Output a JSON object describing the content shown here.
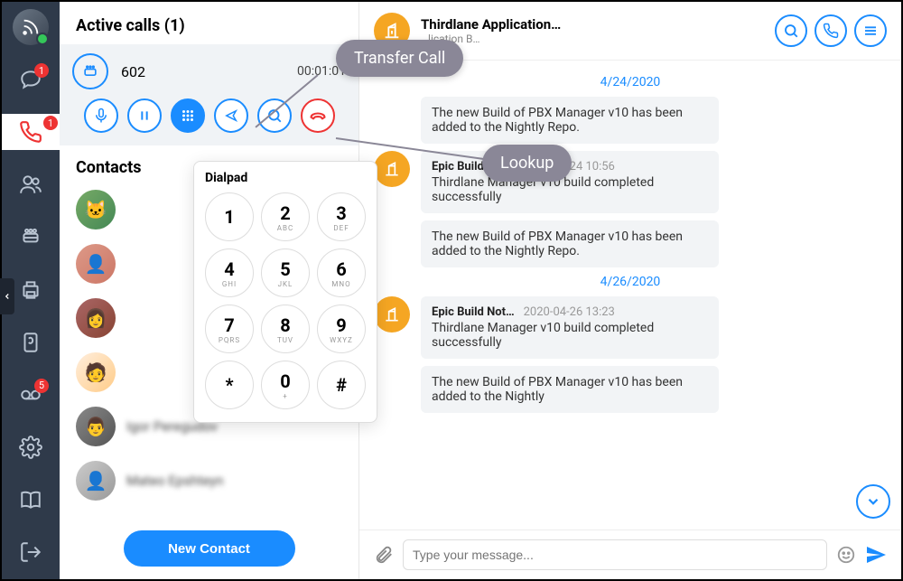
{
  "colors": {
    "accent": "#1a8cff",
    "danger": "#e33",
    "rail_bg": "#2f3a4a",
    "tooltip_bg": "#8a8797",
    "chat_av_bg": "#f5a623",
    "bubble_bg": "#f2f4f6"
  },
  "rail": {
    "badges": {
      "chat": "1",
      "calls": "1",
      "voicemail": "5"
    }
  },
  "mid": {
    "header": "Active calls (1)",
    "call": {
      "number": "602",
      "duration": "00:01:01"
    },
    "contacts_header": "Contacts",
    "contacts": [
      {
        "name": ""
      },
      {
        "name": ""
      },
      {
        "name": ""
      },
      {
        "name": ""
      },
      {
        "name": "Igor Peregudov"
      },
      {
        "name": "Mateo Epshteyn"
      }
    ],
    "new_contact_label": "New Contact"
  },
  "dialpad": {
    "title": "Dialpad",
    "keys": [
      {
        "d": "1",
        "l": ""
      },
      {
        "d": "2",
        "l": "ABC"
      },
      {
        "d": "3",
        "l": "DEF"
      },
      {
        "d": "4",
        "l": "GHI"
      },
      {
        "d": "5",
        "l": "JKL"
      },
      {
        "d": "6",
        "l": "MNO"
      },
      {
        "d": "7",
        "l": "PQRS"
      },
      {
        "d": "8",
        "l": "TUV"
      },
      {
        "d": "9",
        "l": "WXYZ"
      },
      {
        "d": "*",
        "l": ""
      },
      {
        "d": "0",
        "l": "+"
      },
      {
        "d": "#",
        "l": ""
      }
    ]
  },
  "tooltips": {
    "transfer": "Transfer Call",
    "lookup": "Lookup"
  },
  "chat": {
    "header": {
      "title": "Thirdlane Application…",
      "subtitle": "…lication B…"
    },
    "dates": {
      "d1": "4/24/2020",
      "d2": "4/26/2020"
    },
    "msg1": {
      "body": "The new Build of PBX Manager v10 has been added to the Nightly Repo."
    },
    "msg2": {
      "name": "Epic Build Not…",
      "ts": "2020-04-24 10:56",
      "line1": "Thirdlane Manager v10 build completed successfully",
      "line2": "The new Build of PBX Manager v10 has been added to the Nightly Repo."
    },
    "msg3": {
      "name": "Epic Build Not…",
      "ts": "2020-04-26 13:23",
      "line1": "Thirdlane Manager v10 build completed successfully",
      "line2": "The new Build of PBX Manager v10 has been added to the Nightly"
    },
    "compose_placeholder": "Type your message..."
  }
}
